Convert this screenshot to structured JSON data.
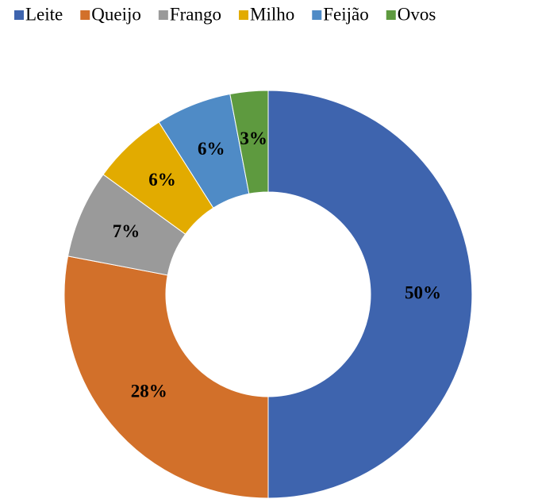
{
  "chart_data": {
    "type": "donut",
    "categories": [
      "Leite",
      "Queijo",
      "Frango",
      "Milho",
      "Feijão",
      "Ovos"
    ],
    "values": [
      50,
      28,
      7,
      6,
      6,
      3
    ],
    "value_labels": [
      "50%",
      "28%",
      "7%",
      "6%",
      "6%",
      "3%"
    ],
    "colors": [
      "#3e64ae",
      "#d2702a",
      "#9a9a9a",
      "#e2ab00",
      "#4f8bc6",
      "#5e9a3f"
    ],
    "legend": "top"
  }
}
